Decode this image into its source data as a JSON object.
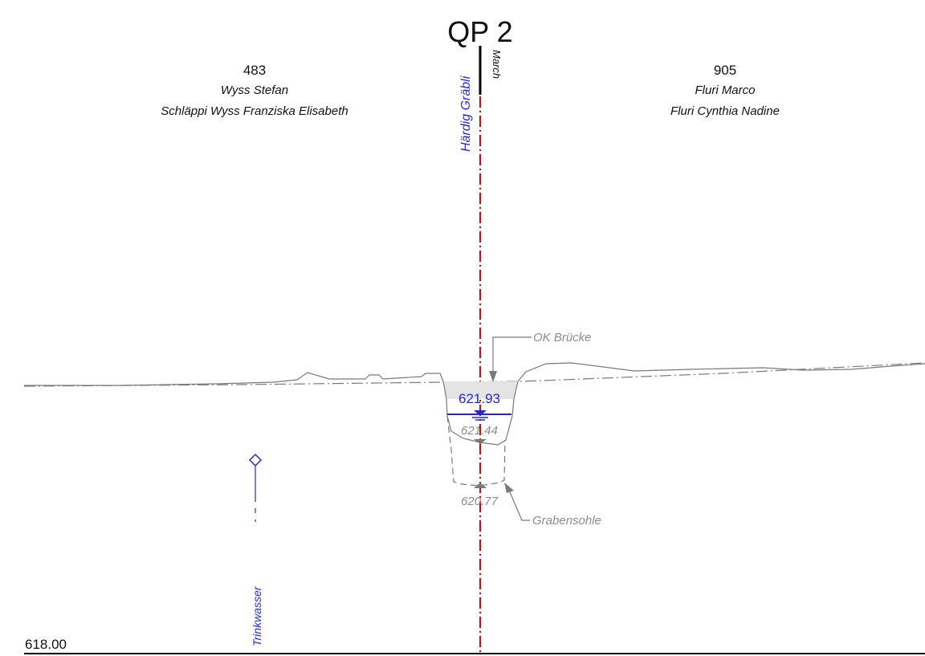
{
  "title": "QP 2",
  "parcels": {
    "left": {
      "number": "483",
      "owners": [
        "Wyss Stefan",
        "Schläppi Wyss Franziska Elisabeth"
      ]
    },
    "right": {
      "number": "905",
      "owners": [
        "Fluri Marco",
        "Fluri Cynthia Nadine"
      ]
    }
  },
  "axis": {
    "name": "Härdig Gräbli",
    "boundary_label": "March"
  },
  "annotations": {
    "ok_bruecke": "OK Brücke",
    "grabensohle": "Grabensohle",
    "water_level": "621.93",
    "level_upper": "621.44",
    "level_lower": "620.77",
    "reference_elevation": "618.00",
    "utility": "Trinkwasser"
  },
  "colors": {
    "axis_red": "#e00000",
    "water_blue": "#2626e0",
    "terrain_gray": "#7a7a7a",
    "bridge_fill": "#e4e4e4"
  }
}
